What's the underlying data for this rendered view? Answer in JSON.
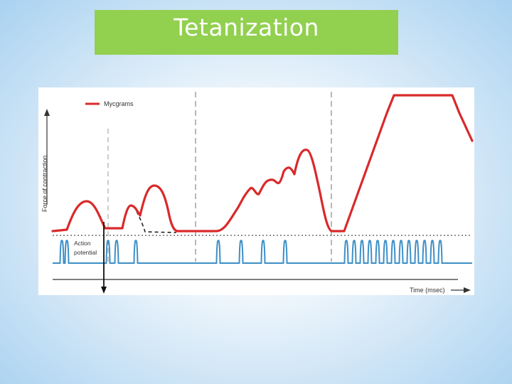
{
  "slide": {
    "title": "Tetanization"
  },
  "figure": {
    "legend_label": "Mycgrams",
    "y_axis_label": "Force of contraction",
    "x_axis_label": "Time (msec)",
    "trace_label_line1": "Action",
    "trace_label_line2": "potential",
    "colors": {
      "myogram": "#d9292b",
      "action_potential": "#3d8fc7",
      "axis": "#333333",
      "title_box": "#92d050"
    }
  }
}
